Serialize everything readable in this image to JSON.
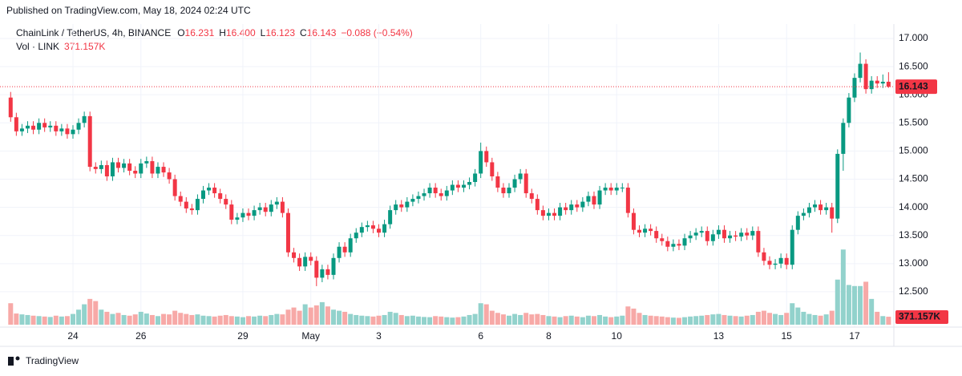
{
  "header": {
    "published": "Published on TradingView.com, May 18, 2024 02:24 UTC",
    "symbol": "ChainLink / TetherUS, 4h, BINANCE",
    "ohlc_labels": [
      "O",
      "H",
      "L",
      "C"
    ],
    "ohlc_values": [
      "16.231",
      "16.400",
      "16.123",
      "16.143"
    ],
    "change": "−0.088 (−0.54%)",
    "volume_title": "Vol · LINK"
  },
  "footer": {
    "brand": "TradingView"
  },
  "chart_data": {
    "type": "candlestick",
    "up_color": "#089981",
    "down_color": "#f23645",
    "volume_up_color": "#92d2cc",
    "volume_down_color": "#f7a9a7",
    "grid": true,
    "ylim": [
      11.915,
      17.256
    ],
    "yticks": [
      {
        "value": 17,
        "label": "17.000"
      },
      {
        "value": 16.5,
        "label": "16.500"
      },
      {
        "value": 16,
        "label": "16.000"
      },
      {
        "value": 15.5,
        "label": "15.500"
      },
      {
        "value": 15,
        "label": "15.000"
      },
      {
        "value": 14.5,
        "label": "14.500"
      },
      {
        "value": 14,
        "label": "14.000"
      },
      {
        "value": 13.5,
        "label": "13.500"
      },
      {
        "value": 13,
        "label": "13.000"
      },
      {
        "value": 12.5,
        "label": "12.500"
      }
    ],
    "y2lim": [
      0,
      14000
    ],
    "last_volume_label": "371.157K",
    "categories": [
      null,
      null,
      null,
      null,
      null,
      null,
      null,
      null,
      null,
      null,
      null,
      "24",
      null,
      null,
      null,
      null,
      null,
      null,
      null,
      null,
      null,
      null,
      null,
      "26",
      null,
      null,
      null,
      null,
      null,
      null,
      null,
      null,
      null,
      null,
      null,
      null,
      null,
      null,
      null,
      null,
      null,
      "29",
      null,
      null,
      null,
      null,
      null,
      null,
      null,
      null,
      null,
      null,
      null,
      "May",
      null,
      null,
      null,
      null,
      null,
      null,
      null,
      null,
      null,
      null,
      null,
      "3",
      null,
      null,
      null,
      null,
      null,
      null,
      null,
      null,
      null,
      null,
      null,
      null,
      null,
      null,
      null,
      null,
      null,
      "6",
      null,
      null,
      null,
      null,
      null,
      null,
      null,
      null,
      null,
      null,
      null,
      "8",
      null,
      null,
      null,
      null,
      null,
      null,
      null,
      null,
      null,
      null,
      null,
      "10",
      null,
      null,
      null,
      null,
      null,
      null,
      null,
      null,
      null,
      null,
      null,
      null,
      null,
      null,
      null,
      null,
      null,
      "13",
      null,
      null,
      null,
      null,
      null,
      null,
      null,
      null,
      null,
      null,
      null,
      "15",
      null,
      null,
      null,
      null,
      null,
      null,
      null,
      null,
      null,
      null,
      null,
      "17",
      null,
      null,
      null,
      null,
      null,
      null
    ],
    "ohlc": [
      [
        15.95,
        16.05,
        15.52,
        15.6
      ],
      [
        15.6,
        15.68,
        15.27,
        15.35
      ],
      [
        15.35,
        15.48,
        15.27,
        15.4
      ],
      [
        15.4,
        15.53,
        15.32,
        15.45
      ],
      [
        15.45,
        15.53,
        15.3,
        15.38
      ],
      [
        15.38,
        15.58,
        15.3,
        15.5
      ],
      [
        15.5,
        15.58,
        15.34,
        15.42
      ],
      [
        15.42,
        15.53,
        15.34,
        15.45
      ],
      [
        15.45,
        15.53,
        15.27,
        15.35
      ],
      [
        15.35,
        15.48,
        15.27,
        15.4
      ],
      [
        15.4,
        15.48,
        15.22,
        15.3
      ],
      [
        15.3,
        15.46,
        15.22,
        15.38
      ],
      [
        15.38,
        15.58,
        15.3,
        15.5
      ],
      [
        15.5,
        15.7,
        15.42,
        15.62
      ],
      [
        15.62,
        15.7,
        14.64,
        14.72
      ],
      [
        14.72,
        14.8,
        14.6,
        14.68
      ],
      [
        14.68,
        14.83,
        14.6,
        14.75
      ],
      [
        14.75,
        14.83,
        14.47,
        14.55
      ],
      [
        14.55,
        14.88,
        14.47,
        14.8
      ],
      [
        14.8,
        14.88,
        14.62,
        14.7
      ],
      [
        14.7,
        14.86,
        14.62,
        14.78
      ],
      [
        14.78,
        14.86,
        14.57,
        14.65
      ],
      [
        14.65,
        14.73,
        14.52,
        14.6
      ],
      [
        14.6,
        14.86,
        14.52,
        14.78
      ],
      [
        14.78,
        14.9,
        14.7,
        14.82
      ],
      [
        14.82,
        14.9,
        14.52,
        14.6
      ],
      [
        14.6,
        14.8,
        14.52,
        14.72
      ],
      [
        14.72,
        14.8,
        14.54,
        14.62
      ],
      [
        14.62,
        14.7,
        14.42,
        14.5
      ],
      [
        14.5,
        14.58,
        14.12,
        14.2
      ],
      [
        14.2,
        14.28,
        14.02,
        14.1
      ],
      [
        14.1,
        14.18,
        13.9,
        13.98
      ],
      [
        13.98,
        14.06,
        13.87,
        13.95
      ],
      [
        13.95,
        14.23,
        13.87,
        14.15
      ],
      [
        14.15,
        14.38,
        14.07,
        14.3
      ],
      [
        14.3,
        14.43,
        14.22,
        14.35
      ],
      [
        14.35,
        14.43,
        14.17,
        14.25
      ],
      [
        14.25,
        14.33,
        14.07,
        14.15
      ],
      [
        14.15,
        14.23,
        13.97,
        14.05
      ],
      [
        14.05,
        14.13,
        13.7,
        13.78
      ],
      [
        13.78,
        13.9,
        13.7,
        13.82
      ],
      [
        13.82,
        13.98,
        13.74,
        13.9
      ],
      [
        13.9,
        13.98,
        13.77,
        13.85
      ],
      [
        13.85,
        14.03,
        13.77,
        13.95
      ],
      [
        13.95,
        14.08,
        13.87,
        14.0
      ],
      [
        14.0,
        14.08,
        13.84,
        13.92
      ],
      [
        13.92,
        14.13,
        13.84,
        14.05
      ],
      [
        14.05,
        14.18,
        13.97,
        14.1
      ],
      [
        14.1,
        14.18,
        13.82,
        13.9
      ],
      [
        13.9,
        13.98,
        13.12,
        13.2
      ],
      [
        13.2,
        13.28,
        13.02,
        13.1
      ],
      [
        13.1,
        13.18,
        12.87,
        12.95
      ],
      [
        12.95,
        13.2,
        12.87,
        13.12
      ],
      [
        13.12,
        13.2,
        12.97,
        13.05
      ],
      [
        13.05,
        13.13,
        12.6,
        12.75
      ],
      [
        12.75,
        12.98,
        12.67,
        12.9
      ],
      [
        12.9,
        12.98,
        12.72,
        12.8
      ],
      [
        12.8,
        13.18,
        12.72,
        13.1
      ],
      [
        13.1,
        13.38,
        13.02,
        13.3
      ],
      [
        13.3,
        13.38,
        13.12,
        13.2
      ],
      [
        13.2,
        13.53,
        13.12,
        13.45
      ],
      [
        13.45,
        13.63,
        13.37,
        13.55
      ],
      [
        13.55,
        13.73,
        13.47,
        13.65
      ],
      [
        13.65,
        13.76,
        13.57,
        13.68
      ],
      [
        13.68,
        13.76,
        13.54,
        13.62
      ],
      [
        13.62,
        13.7,
        13.47,
        13.55
      ],
      [
        13.55,
        13.78,
        13.47,
        13.7
      ],
      [
        13.7,
        14.03,
        13.62,
        13.95
      ],
      [
        13.95,
        14.13,
        13.87,
        14.05
      ],
      [
        14.05,
        14.13,
        13.92,
        14.0
      ],
      [
        14.0,
        14.18,
        13.92,
        14.1
      ],
      [
        14.1,
        14.23,
        14.02,
        14.15
      ],
      [
        14.15,
        14.28,
        14.07,
        14.2
      ],
      [
        14.2,
        14.33,
        14.12,
        14.25
      ],
      [
        14.25,
        14.43,
        14.17,
        14.35
      ],
      [
        14.35,
        14.43,
        14.17,
        14.25
      ],
      [
        14.25,
        14.33,
        14.12,
        14.2
      ],
      [
        14.2,
        14.38,
        14.12,
        14.3
      ],
      [
        14.3,
        14.48,
        14.22,
        14.4
      ],
      [
        14.4,
        14.48,
        14.27,
        14.35
      ],
      [
        14.35,
        14.48,
        14.27,
        14.4
      ],
      [
        14.4,
        14.53,
        14.32,
        14.45
      ],
      [
        14.45,
        14.68,
        14.37,
        14.6
      ],
      [
        14.6,
        15.15,
        14.52,
        15.0
      ],
      [
        15.0,
        15.08,
        14.72,
        14.8
      ],
      [
        14.8,
        14.88,
        14.47,
        14.55
      ],
      [
        14.55,
        14.63,
        14.27,
        14.35
      ],
      [
        14.35,
        14.43,
        14.17,
        14.25
      ],
      [
        14.25,
        14.43,
        14.17,
        14.35
      ],
      [
        14.35,
        14.58,
        14.27,
        14.5
      ],
      [
        14.5,
        14.68,
        14.42,
        14.6
      ],
      [
        14.6,
        14.68,
        14.17,
        14.25
      ],
      [
        14.25,
        14.33,
        14.07,
        14.15
      ],
      [
        14.15,
        14.23,
        13.87,
        13.95
      ],
      [
        13.95,
        14.03,
        13.77,
        13.85
      ],
      [
        13.85,
        13.98,
        13.77,
        13.9
      ],
      [
        13.9,
        13.98,
        13.77,
        13.85
      ],
      [
        13.85,
        14.08,
        13.77,
        14.0
      ],
      [
        14.0,
        14.08,
        13.87,
        13.95
      ],
      [
        13.95,
        14.13,
        13.87,
        14.05
      ],
      [
        14.05,
        14.13,
        13.92,
        14.0
      ],
      [
        14.0,
        14.18,
        13.92,
        14.1
      ],
      [
        14.1,
        14.28,
        14.02,
        14.2
      ],
      [
        14.2,
        14.28,
        13.97,
        14.05
      ],
      [
        14.05,
        14.38,
        13.97,
        14.3
      ],
      [
        14.3,
        14.43,
        14.22,
        14.35
      ],
      [
        14.35,
        14.43,
        14.22,
        14.3
      ],
      [
        14.3,
        14.43,
        14.22,
        14.35
      ],
      [
        14.35,
        14.43,
        14.27,
        14.35
      ],
      [
        14.35,
        14.43,
        13.82,
        13.9
      ],
      [
        13.9,
        13.98,
        13.52,
        13.6
      ],
      [
        13.6,
        13.68,
        13.47,
        13.55
      ],
      [
        13.55,
        13.7,
        13.47,
        13.62
      ],
      [
        13.62,
        13.7,
        13.5,
        13.58
      ],
      [
        13.58,
        13.66,
        13.37,
        13.45
      ],
      [
        13.45,
        13.53,
        13.32,
        13.4
      ],
      [
        13.4,
        13.48,
        13.22,
        13.3
      ],
      [
        13.3,
        13.43,
        13.22,
        13.35
      ],
      [
        13.35,
        13.43,
        13.24,
        13.32
      ],
      [
        13.32,
        13.53,
        13.24,
        13.45
      ],
      [
        13.45,
        13.58,
        13.37,
        13.5
      ],
      [
        13.5,
        13.63,
        13.42,
        13.55
      ],
      [
        13.55,
        13.66,
        13.47,
        13.58
      ],
      [
        13.58,
        13.66,
        13.32,
        13.4
      ],
      [
        13.4,
        13.6,
        13.32,
        13.52
      ],
      [
        13.52,
        13.68,
        13.44,
        13.6
      ],
      [
        13.6,
        13.68,
        13.37,
        13.45
      ],
      [
        13.45,
        13.58,
        13.37,
        13.5
      ],
      [
        13.5,
        13.58,
        13.4,
        13.48
      ],
      [
        13.48,
        13.63,
        13.4,
        13.55
      ],
      [
        13.55,
        13.63,
        13.42,
        13.5
      ],
      [
        13.5,
        13.66,
        13.42,
        13.58
      ],
      [
        13.58,
        13.66,
        13.12,
        13.2
      ],
      [
        13.2,
        13.28,
        12.97,
        13.05
      ],
      [
        13.05,
        13.13,
        12.9,
        12.98
      ],
      [
        12.98,
        13.08,
        12.9,
        13.0
      ],
      [
        13.0,
        13.18,
        12.92,
        13.1
      ],
      [
        13.1,
        13.18,
        12.9,
        12.98
      ],
      [
        12.98,
        13.68,
        12.9,
        13.6
      ],
      [
        13.6,
        13.93,
        13.52,
        13.85
      ],
      [
        13.85,
        13.98,
        13.77,
        13.9
      ],
      [
        13.9,
        14.08,
        13.82,
        14.0
      ],
      [
        14.0,
        14.13,
        13.92,
        14.05
      ],
      [
        14.05,
        14.13,
        13.87,
        13.95
      ],
      [
        13.95,
        14.08,
        13.87,
        14.0
      ],
      [
        14.0,
        14.08,
        13.55,
        13.8
      ],
      [
        13.8,
        15.03,
        13.72,
        14.95
      ],
      [
        14.95,
        15.58,
        14.65,
        15.5
      ],
      [
        15.5,
        16.03,
        15.42,
        15.95
      ],
      [
        15.95,
        16.38,
        15.87,
        16.3
      ],
      [
        16.3,
        16.75,
        16.22,
        16.55
      ],
      [
        16.55,
        16.63,
        16.02,
        16.1
      ],
      [
        16.1,
        16.33,
        16.02,
        16.25
      ],
      [
        16.25,
        16.33,
        16.12,
        16.2
      ],
      [
        16.2,
        16.36,
        16.12,
        16.231
      ],
      [
        16.231,
        16.4,
        16.123,
        16.143
      ]
    ],
    "volume": [
      1000,
      520,
      480,
      450,
      420,
      400,
      380,
      360,
      420,
      380,
      400,
      500,
      700,
      950,
      1200,
      1100,
      700,
      600,
      500,
      550,
      450,
      420,
      480,
      600,
      520,
      450,
      400,
      500,
      480,
      650,
      550,
      500,
      450,
      480,
      420,
      400,
      380,
      420,
      450,
      400,
      380,
      350,
      400,
      380,
      420,
      400,
      450,
      500,
      480,
      700,
      800,
      650,
      950,
      800,
      900,
      1050,
      850,
      700,
      650,
      600,
      500,
      450,
      420,
      400,
      380,
      420,
      450,
      600,
      550,
      450,
      400,
      420,
      380,
      360,
      350,
      400,
      380,
      350,
      330,
      350,
      380,
      450,
      500,
      1000,
      950,
      650,
      550,
      480,
      420,
      500,
      450,
      550,
      480,
      500,
      450,
      400,
      380,
      350,
      400,
      420,
      380,
      350,
      420,
      400,
      450,
      380,
      350,
      380,
      420,
      850,
      750,
      550,
      450,
      420,
      400,
      380,
      350,
      330,
      320,
      350,
      380,
      400,
      420,
      450,
      480,
      500,
      450,
      420,
      400,
      380,
      420,
      450,
      600,
      650,
      550,
      500,
      450,
      550,
      1000,
      800,
      600,
      500,
      450,
      420,
      480,
      650,
      2100,
      3500,
      1850,
      1800,
      1800,
      2000,
      1200,
      600,
      400,
      371.157
    ]
  }
}
